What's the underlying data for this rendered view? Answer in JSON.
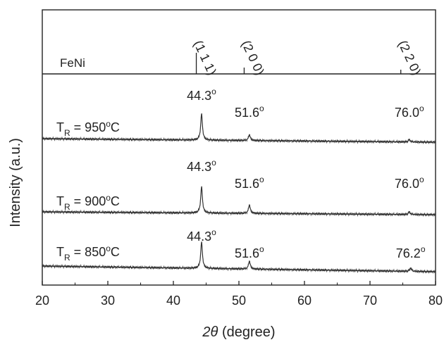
{
  "chart_data": {
    "type": "line",
    "xlabel_symbol": "2θ",
    "xlabel_unit": "(degree)",
    "ylabel": "Intensity (a.u.)",
    "xlim": [
      20,
      80
    ],
    "xticks": [
      20,
      30,
      40,
      50,
      60,
      70,
      80
    ],
    "y_ticks_shown": false,
    "reference_pattern": {
      "name": "FeNi",
      "lines": [
        {
          "x": 43.5,
          "label": "(1 1 1)",
          "intensity": 1.0
        },
        {
          "x": 50.8,
          "label": "(2 0 0)",
          "intensity": 0.3
        },
        {
          "x": 74.7,
          "label": "(2 2 0)",
          "intensity": 0.2
        }
      ]
    },
    "series": [
      {
        "name_prefix": "T",
        "name_sub": "R",
        "name_value": "= 950",
        "name_sup": "o",
        "name_unit": "C",
        "peaks": [
          {
            "x": 44.3,
            "label": "44.3",
            "height": 1.0
          },
          {
            "x": 51.6,
            "label": "51.6",
            "height": 0.23
          },
          {
            "x": 76.0,
            "label": "76.0",
            "height": 0.09
          }
        ]
      },
      {
        "name_prefix": "T",
        "name_sub": "R",
        "name_value": "= 900",
        "name_sup": "o",
        "name_unit": "C",
        "peaks": [
          {
            "x": 44.3,
            "label": "44.3",
            "height": 1.0
          },
          {
            "x": 51.6,
            "label": "51.6",
            "height": 0.33
          },
          {
            "x": 76.0,
            "label": "76.0",
            "height": 0.1
          }
        ]
      },
      {
        "name_prefix": "T",
        "name_sub": "R",
        "name_value": "= 850",
        "name_sup": "o",
        "name_unit": "C",
        "peaks": [
          {
            "x": 44.3,
            "label": "44.3",
            "height": 1.0
          },
          {
            "x": 51.6,
            "label": "51.6",
            "height": 0.31
          },
          {
            "x": 76.2,
            "label": "76.2",
            "height": 0.13
          }
        ]
      }
    ],
    "degree_symbol": "o"
  }
}
